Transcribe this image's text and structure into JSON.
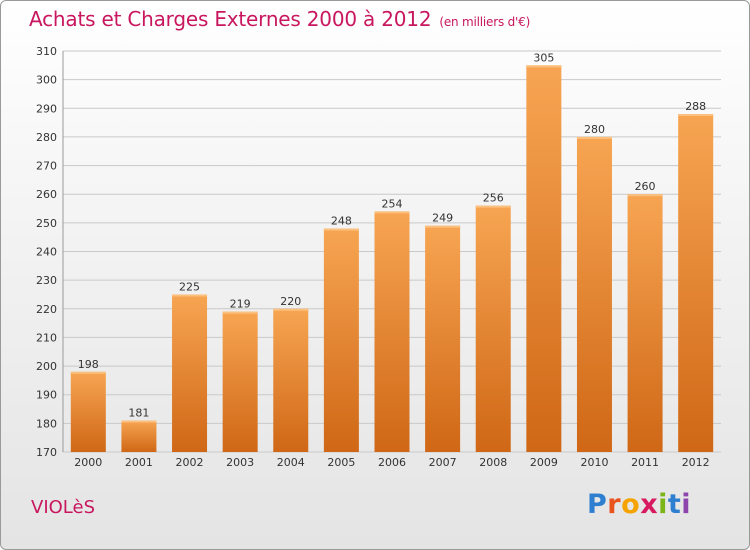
{
  "header": {
    "title": "Achats et Charges Externes 2000 à 2012",
    "unit": "(en milliers d'€)"
  },
  "footer": {
    "town": "VIOLèS",
    "brand": {
      "letters": [
        "P",
        "r",
        "o",
        "x",
        "i",
        "t",
        "i"
      ],
      "colors": [
        "#2f7fd1",
        "#e8541c",
        "#f5a300",
        "#d81b60",
        "#7cb518",
        "#2f7fd1",
        "#8e44ad"
      ]
    }
  },
  "colors": {
    "accent": "#c8175e",
    "bar_top": "#f7a552",
    "bar_bottom": "#cf6716"
  },
  "chart_data": {
    "type": "bar",
    "title": "Achats et Charges Externes 2000 à 2012",
    "categories": [
      "2000",
      "2001",
      "2002",
      "2003",
      "2004",
      "2005",
      "2006",
      "2007",
      "2008",
      "2009",
      "2010",
      "2011",
      "2012"
    ],
    "values": [
      198,
      181,
      225,
      219,
      220,
      248,
      254,
      249,
      256,
      305,
      280,
      260,
      288
    ],
    "ylim": [
      170,
      310
    ],
    "yticks": [
      170,
      180,
      190,
      200,
      210,
      220,
      230,
      240,
      250,
      260,
      270,
      280,
      290,
      300,
      310
    ],
    "grid": true,
    "legend": "none"
  }
}
